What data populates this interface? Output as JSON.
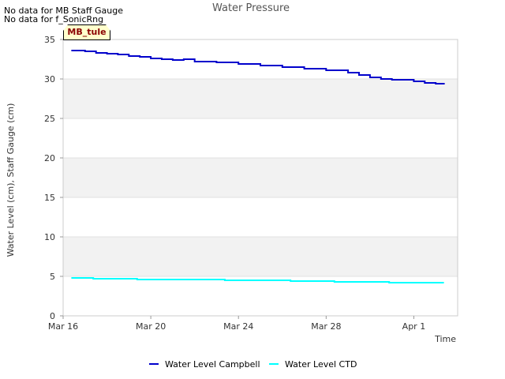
{
  "notices": [
    "No data for MB Staff Gauge",
    "No data for f_SonicRng"
  ],
  "site_tag": "MB_tule",
  "chart_data": {
    "type": "line",
    "title": "Water Pressure",
    "xlabel": "Time",
    "ylabel": "Water Level (cm), Staff Gauge (cm)",
    "ylim": [
      0,
      35
    ],
    "yticks": [
      0,
      5,
      10,
      15,
      20,
      25,
      30,
      35
    ],
    "xlim": [
      "2024-03-16",
      "2024-04-03"
    ],
    "xticks": [
      {
        "date": "2024-03-16",
        "label": "Mar 16"
      },
      {
        "date": "2024-03-20",
        "label": "Mar 20"
      },
      {
        "date": "2024-03-24",
        "label": "Mar 24"
      },
      {
        "date": "2024-03-28",
        "label": "Mar 28"
      },
      {
        "date": "2024-04-01",
        "label": "Apr 1"
      }
    ],
    "grid": true,
    "banded_background": true,
    "legend": "bottom",
    "series": [
      {
        "name": "Water Level Campbell",
        "color": "#0000cc",
        "x": [
          "2024-03-16 09:00",
          "2024-03-17 00:00",
          "2024-03-17 12:00",
          "2024-03-18 00:00",
          "2024-03-18 12:00",
          "2024-03-19 00:00",
          "2024-03-19 12:00",
          "2024-03-20 00:00",
          "2024-03-20 12:00",
          "2024-03-21 00:00",
          "2024-03-21 12:00",
          "2024-03-22 00:00",
          "2024-03-23 00:00",
          "2024-03-24 00:00",
          "2024-03-25 00:00",
          "2024-03-26 00:00",
          "2024-03-27 00:00",
          "2024-03-28 00:00",
          "2024-03-29 00:00",
          "2024-03-29 12:00",
          "2024-03-30 00:00",
          "2024-03-30 12:00",
          "2024-03-31 00:00",
          "2024-03-31 12:00",
          "2024-04-01 00:00",
          "2024-04-01 12:00",
          "2024-04-02 00:00",
          "2024-04-02 09:00"
        ],
        "y": [
          33.6,
          33.5,
          33.3,
          33.2,
          33.1,
          32.9,
          32.8,
          32.6,
          32.5,
          32.4,
          32.5,
          32.2,
          32.1,
          31.9,
          31.7,
          31.5,
          31.3,
          31.1,
          30.8,
          30.5,
          30.2,
          30.0,
          29.9,
          29.9,
          29.7,
          29.5,
          29.4,
          29.3
        ]
      },
      {
        "name": "Water Level CTD",
        "color": "#00ffff",
        "x": [
          "2024-03-16 09:00",
          "2024-03-17 09:00",
          "2024-03-19 09:00",
          "2024-03-23 09:00",
          "2024-03-26 09:00",
          "2024-03-28 09:00",
          "2024-03-30 21:00",
          "2024-04-02 09:00"
        ],
        "y": [
          4.8,
          4.7,
          4.6,
          4.5,
          4.4,
          4.3,
          4.2,
          4.2
        ]
      }
    ]
  }
}
